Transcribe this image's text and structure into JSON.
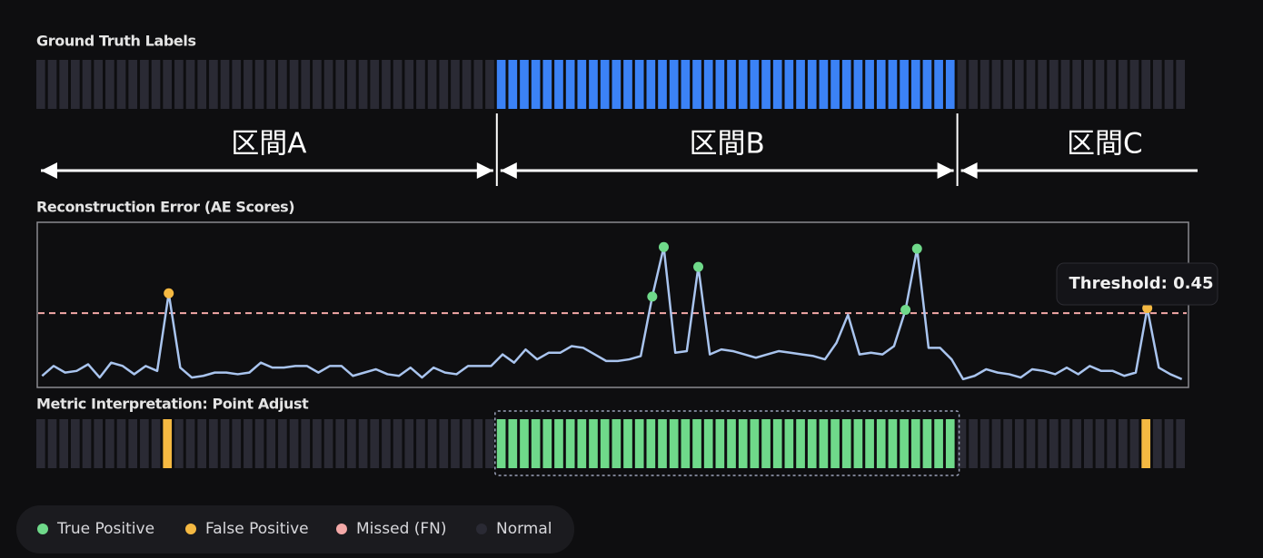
{
  "ground_truth": {
    "title": "Ground Truth Labels",
    "cells": 100,
    "anomaly_range": [
      40,
      79
    ],
    "anomaly_color": "#3b82f6",
    "normal_color": "#2a2a34"
  },
  "segments": [
    {
      "label": "区間A"
    },
    {
      "label": "区間B"
    },
    {
      "label": "区間C"
    }
  ],
  "chart_data": {
    "type": "line",
    "title": "Reconstruction Error (AE Scores)",
    "values": [
      0.07,
      0.13,
      0.09,
      0.1,
      0.14,
      0.06,
      0.15,
      0.13,
      0.08,
      0.13,
      0.1,
      0.57,
      0.12,
      0.06,
      0.07,
      0.09,
      0.09,
      0.08,
      0.09,
      0.15,
      0.12,
      0.12,
      0.13,
      0.13,
      0.09,
      0.13,
      0.13,
      0.07,
      0.09,
      0.11,
      0.08,
      0.07,
      0.12,
      0.06,
      0.12,
      0.09,
      0.08,
      0.13,
      0.13,
      0.13,
      0.2,
      0.15,
      0.23,
      0.17,
      0.21,
      0.21,
      0.25,
      0.24,
      0.2,
      0.16,
      0.16,
      0.17,
      0.19,
      0.55,
      0.85,
      0.21,
      0.22,
      0.73,
      0.2,
      0.23,
      0.22,
      0.2,
      0.18,
      0.2,
      0.22,
      0.21,
      0.2,
      0.19,
      0.17,
      0.27,
      0.44,
      0.2,
      0.21,
      0.2,
      0.25,
      0.47,
      0.84,
      0.24,
      0.24,
      0.17,
      0.05,
      0.07,
      0.11,
      0.09,
      0.08,
      0.06,
      0.11,
      0.1,
      0.08,
      0.12,
      0.08,
      0.13,
      0.1,
      0.1,
      0.07,
      0.09,
      0.48,
      0.12,
      0.08,
      0.05
    ],
    "ylim": [
      0,
      1
    ],
    "threshold": 0.45,
    "threshold_label": "Threshold: 0.45",
    "color": "#a9c4ee",
    "threshold_color": "#f4a9a8"
  },
  "metric": {
    "title": "Metric Interpretation: Point Adjust"
  },
  "legend": [
    {
      "name": "True Positive",
      "color": "#6fd98a"
    },
    {
      "name": "False Positive",
      "color": "#f5b942"
    },
    {
      "name": "Missed (FN)",
      "color": "#f4a9a8"
    },
    {
      "name": "Normal",
      "color": "#2a2a34"
    }
  ]
}
